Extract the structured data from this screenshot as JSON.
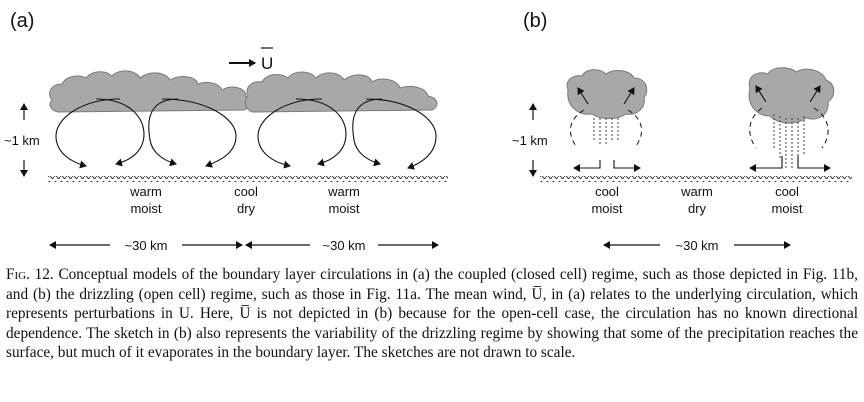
{
  "panels": {
    "a": {
      "label": "(a)",
      "wind_label": "U",
      "height_label": "~1 km",
      "zones": [
        {
          "line1": "warm",
          "line2": "moist"
        },
        {
          "line1": "cool",
          "line2": "dry"
        },
        {
          "line1": "warm",
          "line2": "moist"
        }
      ],
      "scales": [
        "~30 km",
        "~30 km"
      ]
    },
    "b": {
      "label": "(b)",
      "height_label": "~1 km",
      "zones": [
        {
          "line1": "cool",
          "line2": "moist"
        },
        {
          "line1": "warm",
          "line2": "dry"
        },
        {
          "line1": "cool",
          "line2": "moist"
        }
      ],
      "scale": "~30 km"
    }
  },
  "caption": {
    "prefix": "Fig. 12.",
    "text": "Conceptual models of the boundary layer circulations in (a) the coupled (closed cell) regime, such as those depicted in Fig. 11b, and (b) the drizzling (open cell) regime, such as those in Fig. 11a. The mean wind, U̅, in (a) relates to the underlying circulation, which represents perturbations in U. Here, U̅ is not depicted in (b) because for the open-cell case, the circulation has no known directional dependence. The sketch in (b) also represents the variability of the drizzling regime by showing that some of the precipitation reaches the surface, but much of it evaporates in the boundary layer. The sketches are not drawn to scale."
  }
}
